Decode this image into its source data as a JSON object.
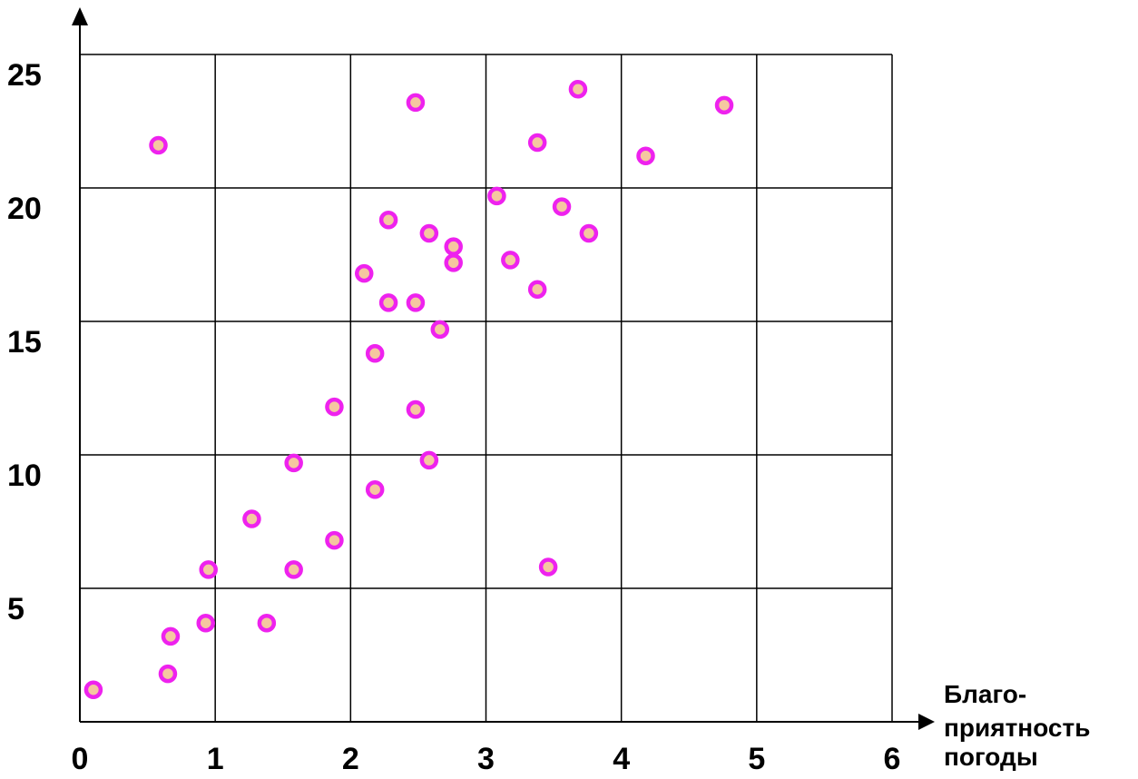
{
  "chart_data": {
    "type": "scatter",
    "title": "",
    "xlabel_lines": [
      "Благо-",
      "приятность",
      "погоды"
    ],
    "ylabel": "",
    "xlim": [
      0,
      6
    ],
    "ylim": [
      0,
      25
    ],
    "x_ticks": [
      0,
      1,
      2,
      3,
      4,
      5,
      6
    ],
    "x_tick_labels": [
      "0",
      "1",
      "2",
      "3",
      "4",
      "5",
      "6"
    ],
    "y_ticks": [
      5,
      10,
      15,
      20,
      25
    ],
    "y_tick_labels": [
      "5",
      "10",
      "15",
      "20",
      "25"
    ],
    "grid": true,
    "legend": "none",
    "colors": {
      "marker_stroke": "#ee22ee",
      "marker_fill": "#f5c7a0",
      "grid": "#000000",
      "axis": "#000000"
    },
    "series": [
      {
        "points": [
          {
            "x": 0.1,
            "y": 1.2
          },
          {
            "x": 0.58,
            "y": 21.6
          },
          {
            "x": 0.65,
            "y": 1.8
          },
          {
            "x": 0.67,
            "y": 3.2
          },
          {
            "x": 0.93,
            "y": 3.7
          },
          {
            "x": 0.95,
            "y": 5.7
          },
          {
            "x": 1.27,
            "y": 7.6
          },
          {
            "x": 1.38,
            "y": 3.7
          },
          {
            "x": 1.58,
            "y": 9.7
          },
          {
            "x": 1.58,
            "y": 5.7
          },
          {
            "x": 1.88,
            "y": 11.8
          },
          {
            "x": 1.88,
            "y": 6.8
          },
          {
            "x": 2.1,
            "y": 16.8
          },
          {
            "x": 2.18,
            "y": 13.8
          },
          {
            "x": 2.18,
            "y": 8.7
          },
          {
            "x": 2.28,
            "y": 18.8
          },
          {
            "x": 2.28,
            "y": 15.7
          },
          {
            "x": 2.48,
            "y": 23.2
          },
          {
            "x": 2.48,
            "y": 15.7
          },
          {
            "x": 2.48,
            "y": 11.7
          },
          {
            "x": 2.58,
            "y": 18.3
          },
          {
            "x": 2.58,
            "y": 9.8
          },
          {
            "x": 2.66,
            "y": 14.7
          },
          {
            "x": 2.76,
            "y": 17.8
          },
          {
            "x": 2.76,
            "y": 17.2
          },
          {
            "x": 3.08,
            "y": 19.7
          },
          {
            "x": 3.18,
            "y": 17.3
          },
          {
            "x": 3.38,
            "y": 21.7
          },
          {
            "x": 3.38,
            "y": 16.2
          },
          {
            "x": 3.46,
            "y": 5.8
          },
          {
            "x": 3.56,
            "y": 19.3
          },
          {
            "x": 3.68,
            "y": 23.7
          },
          {
            "x": 3.76,
            "y": 18.3
          },
          {
            "x": 4.18,
            "y": 21.2
          },
          {
            "x": 4.76,
            "y": 23.1
          }
        ]
      }
    ]
  }
}
